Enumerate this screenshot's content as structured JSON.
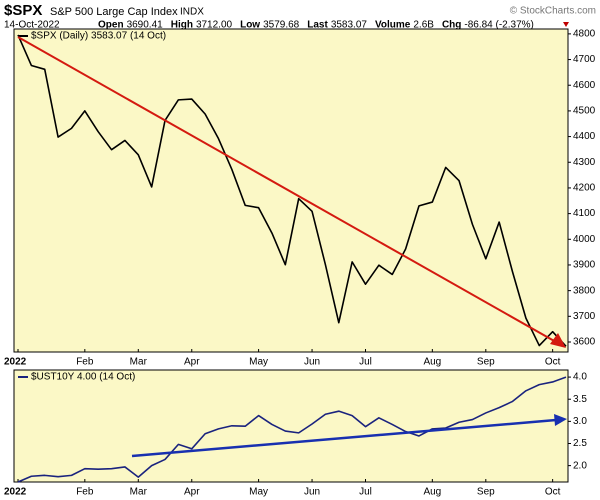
{
  "header": {
    "symbol": "$SPX",
    "name": "S&P 500 Large Cap Index",
    "exchange": "INDX",
    "date": "14-Oct-2022",
    "stats": [
      {
        "label": "Open",
        "value": "3690.41"
      },
      {
        "label": "High",
        "value": "3712.00"
      },
      {
        "label": "Low",
        "value": "3579.68"
      },
      {
        "label": "Last",
        "value": "3583.07"
      },
      {
        "label": "Volume",
        "value": "2.6B"
      },
      {
        "label": "Chg",
        "value": "-86.84 (-2.37%)"
      }
    ],
    "watermark": "© StockCharts.com"
  },
  "chart_data": [
    {
      "type": "line",
      "categories": [
        "2022",
        null,
        null,
        null,
        null,
        "Feb",
        null,
        null,
        null,
        "Mar",
        null,
        null,
        null,
        "Apr",
        null,
        null,
        null,
        null,
        "May",
        null,
        null,
        null,
        "Jun",
        null,
        null,
        null,
        "Jul",
        null,
        null,
        null,
        null,
        "Aug",
        null,
        null,
        null,
        "Sep",
        null,
        null,
        null,
        null,
        "Oct",
        null
      ],
      "series": [
        {
          "name": "$SPX (Daily) 3583.07 (14 Oct)",
          "color": "#000000",
          "values": [
            4796,
            4677,
            4662,
            4398,
            4432,
            4500,
            4419,
            4349,
            4385,
            4329,
            4204,
            4463,
            4543,
            4546,
            4488,
            4392,
            4272,
            4132,
            4123,
            4024,
            3901,
            4158,
            4109,
            3901,
            3675,
            3912,
            3825,
            3899,
            3863,
            3962,
            4130,
            4145,
            4280,
            4228,
            4058,
            3924,
            4067,
            3873,
            3693,
            3586,
            3640,
            3583
          ]
        }
      ],
      "ylim": [
        3561,
        4819
      ],
      "yticks": [
        3600,
        3700,
        3800,
        3900,
        4000,
        4100,
        4200,
        4300,
        4400,
        4500,
        4600,
        4700,
        4800
      ],
      "grid": false
    },
    {
      "type": "line",
      "categories": [
        "2022",
        null,
        null,
        null,
        null,
        "Feb",
        null,
        null,
        null,
        "Mar",
        null,
        null,
        null,
        "Apr",
        null,
        null,
        null,
        null,
        "May",
        null,
        null,
        null,
        "Jun",
        null,
        null,
        null,
        "Jul",
        null,
        null,
        null,
        null,
        "Aug",
        null,
        null,
        null,
        "Sep",
        null,
        null,
        null,
        null,
        "Oct",
        null
      ],
      "series": [
        {
          "name": "$UST10Y 4.00 (14 Oct)",
          "color": "#1a237e",
          "values": [
            1.63,
            1.76,
            1.78,
            1.75,
            1.78,
            1.93,
            1.92,
            1.93,
            1.97,
            1.74,
            2.0,
            2.14,
            2.48,
            2.38,
            2.72,
            2.83,
            2.9,
            2.89,
            3.13,
            2.93,
            2.78,
            2.74,
            2.94,
            3.16,
            3.23,
            3.13,
            2.88,
            3.08,
            2.93,
            2.77,
            2.67,
            2.83,
            2.85,
            2.98,
            3.04,
            3.19,
            3.31,
            3.45,
            3.69,
            3.83,
            3.89,
            4.0
          ]
        }
      ],
      "ylim": [
        1.63,
        4.16
      ],
      "yticks": [
        {
          "value": 2,
          "label": "2.0"
        },
        2.5,
        {
          "value": 3,
          "label": "3.0"
        },
        3.5,
        {
          "value": 4,
          "label": "4.0"
        }
      ],
      "grid": false
    }
  ]
}
